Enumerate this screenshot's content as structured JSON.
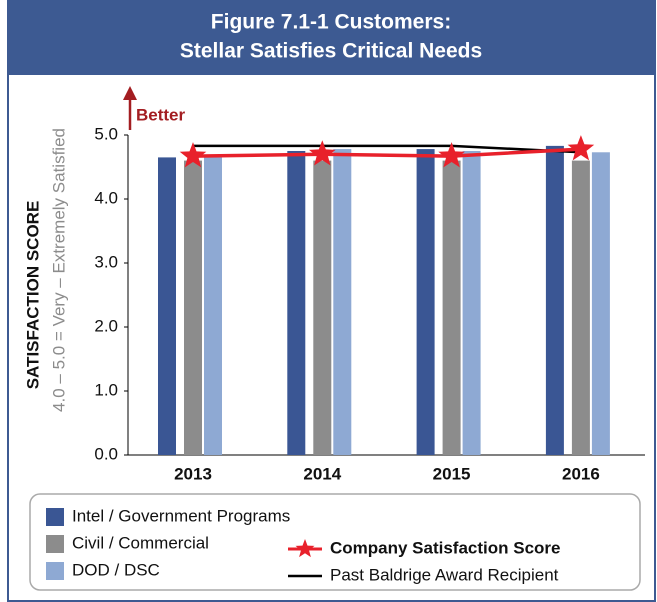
{
  "chart_data": {
    "type": "bar",
    "title": [
      "Figure 7.1-1 Customers:",
      "Stellar Satisfies Critical Needs"
    ],
    "ylabel": "SATISFACTION SCORE",
    "ylabel_note": "4.0 – 5.0 = Very – Extremely Satisfied",
    "annotation": "Better",
    "categories": [
      "2013",
      "2014",
      "2015",
      "2016"
    ],
    "ylim": [
      0,
      5
    ],
    "yticks": [
      {
        "value": 0,
        "label": "0.0"
      },
      {
        "value": 1,
        "label": "1.0"
      },
      {
        "value": 2,
        "label": "2.0"
      },
      {
        "value": 3,
        "label": "3.0"
      },
      {
        "value": 4,
        "label": "4.0"
      },
      {
        "value": 5,
        "label": "5.0"
      }
    ],
    "series": [
      {
        "name": "Intel / Government Programs",
        "color": "#3a5694",
        "kind": "bar",
        "values": [
          4.65,
          4.75,
          4.78,
          4.83
        ]
      },
      {
        "name": "Civil / Commercial",
        "color": "#8c8c8c",
        "kind": "bar",
        "values": [
          4.6,
          4.6,
          4.6,
          4.6
        ]
      },
      {
        "name": "DOD / DSC",
        "color": "#8ea9d3",
        "kind": "bar",
        "values": [
          4.65,
          4.78,
          4.75,
          4.73
        ]
      },
      {
        "name": "Company Satisfaction Score",
        "color": "#e8212b",
        "kind": "line",
        "marker": "star",
        "values": [
          4.67,
          4.7,
          4.67,
          4.78
        ]
      },
      {
        "name": "Past Baldrige Award Recipient",
        "color": "#000000",
        "kind": "line",
        "values": [
          4.83,
          4.83,
          4.83,
          4.73
        ]
      }
    ]
  }
}
